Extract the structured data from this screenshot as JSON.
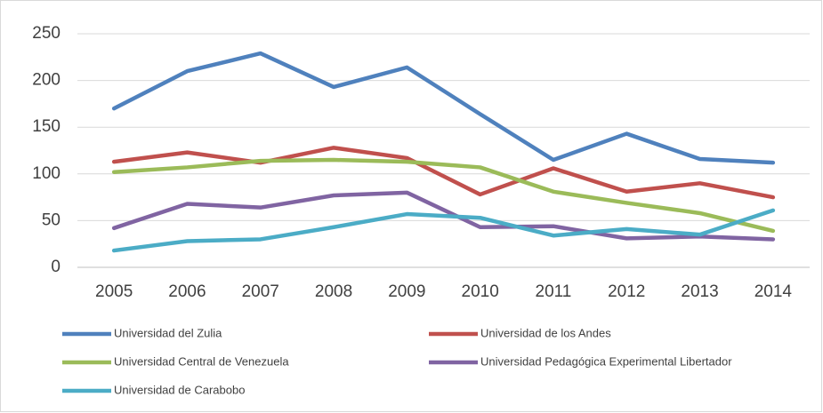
{
  "chart_data": {
    "type": "line",
    "categories": [
      "2005",
      "2006",
      "2007",
      "2008",
      "2009",
      "2010",
      "2011",
      "2012",
      "2013",
      "2014"
    ],
    "series": [
      {
        "name": "Universidad del Zulia",
        "color": "#4f81bd",
        "values": [
          170,
          210,
          229,
          193,
          214,
          164,
          115,
          143,
          116,
          112
        ]
      },
      {
        "name": "Universidad de los Andes",
        "color": "#c0504d",
        "values": [
          113,
          123,
          112,
          128,
          117,
          78,
          106,
          81,
          90,
          75
        ]
      },
      {
        "name": "Universidad Central de Venezuela",
        "color": "#9bbb59",
        "values": [
          102,
          107,
          114,
          115,
          113,
          107,
          81,
          69,
          58,
          39
        ]
      },
      {
        "name": "Universidad Pedagógica Experimental Libertador",
        "color": "#8064a2",
        "values": [
          42,
          68,
          64,
          77,
          80,
          43,
          44,
          31,
          33,
          30
        ]
      },
      {
        "name": "Universidad de Carabobo",
        "color": "#4bacc6",
        "values": [
          18,
          28,
          30,
          43,
          57,
          53,
          34,
          41,
          35,
          61
        ]
      }
    ],
    "ylim": [
      0,
      250
    ],
    "yticks": [
      0,
      50,
      100,
      150,
      200,
      250
    ],
    "grid": true,
    "legend": "bottom"
  }
}
